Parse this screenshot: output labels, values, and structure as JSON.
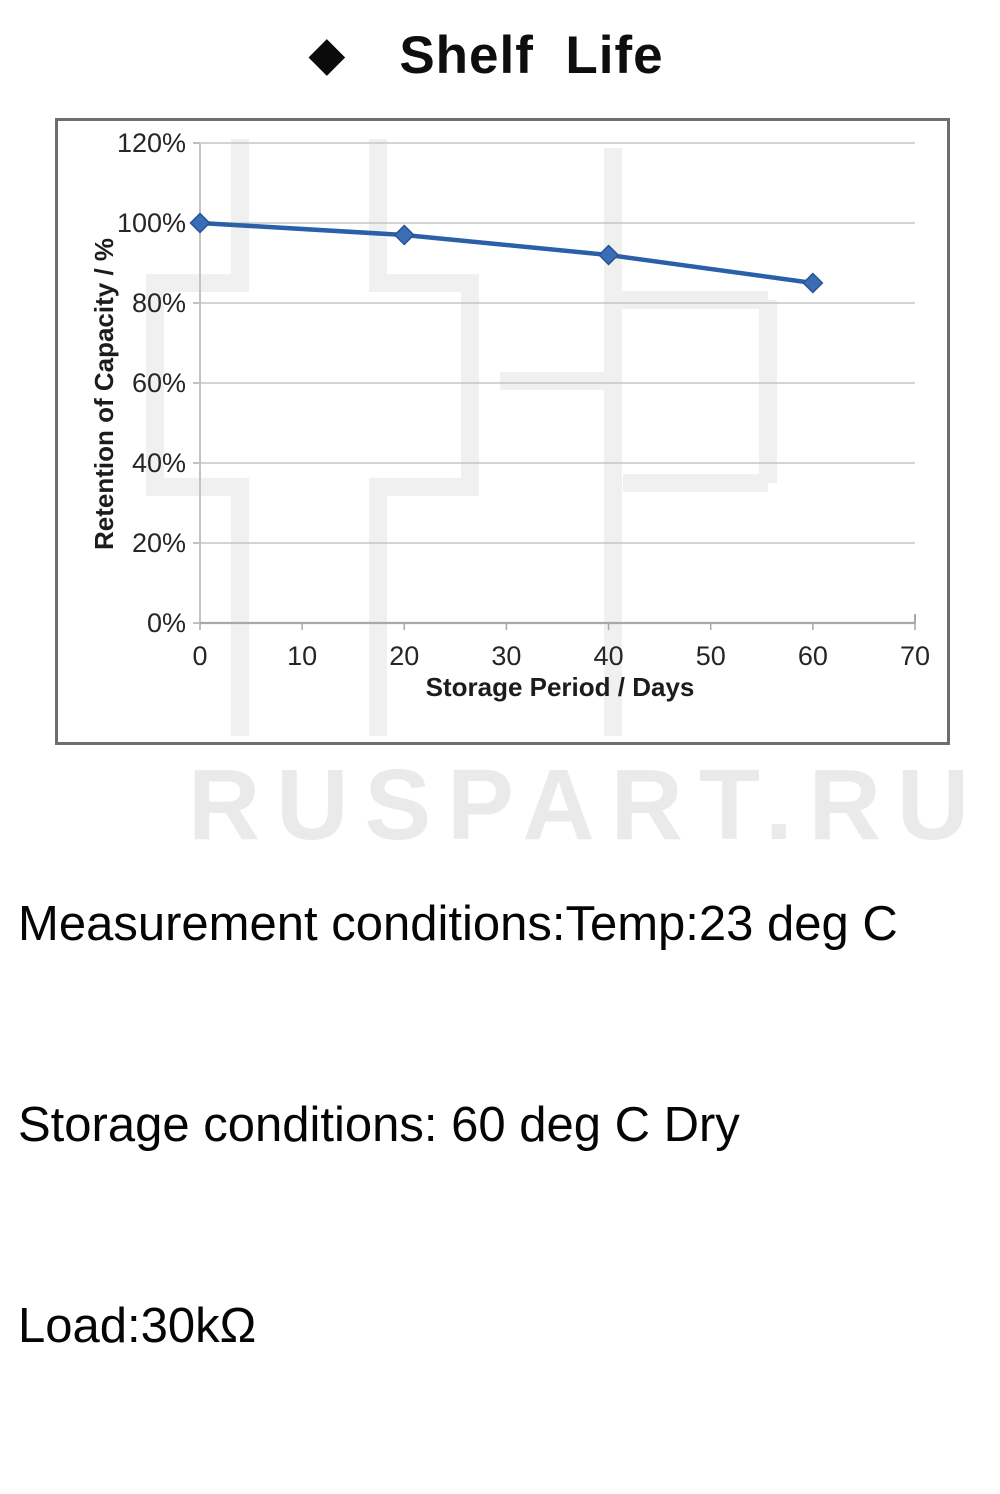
{
  "title": {
    "bullet": "◆",
    "text": "Shelf  Life"
  },
  "chart_data": {
    "type": "line",
    "title": "Shelf Life",
    "xlabel": "Storage Period / Days",
    "ylabel": "Retention of Capacity / %",
    "x": [
      0,
      20,
      40,
      60
    ],
    "series": [
      {
        "name": "Retention of Capacity",
        "values": [
          100,
          97,
          92,
          85
        ]
      }
    ],
    "xlim": [
      0,
      70
    ],
    "ylim": [
      0,
      120
    ],
    "x_ticks": [
      0,
      10,
      20,
      30,
      40,
      50,
      60,
      70
    ],
    "y_ticks": [
      120,
      100,
      80,
      60,
      40,
      20,
      0
    ],
    "y_tick_labels": [
      "120%",
      "100%",
      "80%",
      "60%",
      "40%",
      "20%",
      "0%"
    ],
    "grid": "horizontal-only",
    "legend": "none",
    "line_color": "#2b5fa8",
    "marker": "diamond",
    "marker_fill": "#3a6db6",
    "marker_stroke": "#275392",
    "gridline_color": "#c6c6c6",
    "x_axis_color": "#a8a8a8",
    "y_axis_color": "#c3c3c3",
    "tick_label_color": "#262626",
    "plot_watermark_color": "#f0f0f0"
  },
  "conditions": {
    "line1": "Measurement conditions:Temp:23 deg C",
    "line2": "Storage conditions: 60 deg C Dry",
    "line3": "Load:30kΩ"
  },
  "watermark": {
    "text": "RUSPART.RU",
    "color": "#eaeaea"
  }
}
